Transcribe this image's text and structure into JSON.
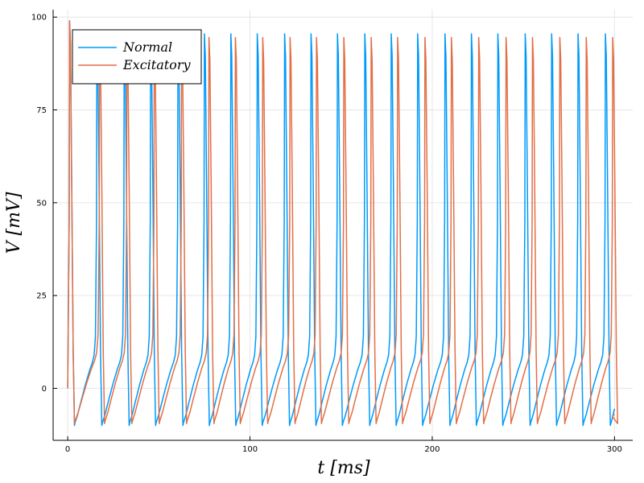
{
  "chart_data": {
    "type": "line",
    "title": "",
    "xlabel": "t [ms]",
    "ylabel": "V [mV]",
    "xlim": [
      -8,
      310
    ],
    "ylim": [
      -14,
      102
    ],
    "xticks": [
      0,
      100,
      200,
      300
    ],
    "yticks": [
      0,
      25,
      50,
      75,
      100
    ],
    "grid": true,
    "legend_position": "top-left",
    "series": [
      {
        "name": "Normal",
        "color": "#009AFA",
        "peak_times": [
          1,
          16,
          31,
          45.5,
          60.5,
          75,
          89.5,
          104,
          119,
          133.5,
          148,
          163,
          177.5,
          192,
          207,
          221.5,
          236,
          251,
          265.5,
          280,
          295
        ],
        "peak_value": 95.5,
        "first_peak_value": 99,
        "trough_value": -10,
        "end": [
          300,
          -5.5
        ]
      },
      {
        "name": "Excitatory",
        "color": "#E26F46",
        "peak_times": [
          1,
          17.5,
          32.5,
          47.5,
          62.5,
          77.5,
          92,
          107,
          122,
          136.5,
          151.5,
          166.5,
          181,
          196,
          210.5,
          225.5,
          240.5,
          255,
          270,
          284.5,
          299
        ],
        "peak_value": 94.5,
        "first_peak_value": 99,
        "trough_value": -9.5,
        "end": [
          300,
          -7
        ]
      }
    ]
  }
}
